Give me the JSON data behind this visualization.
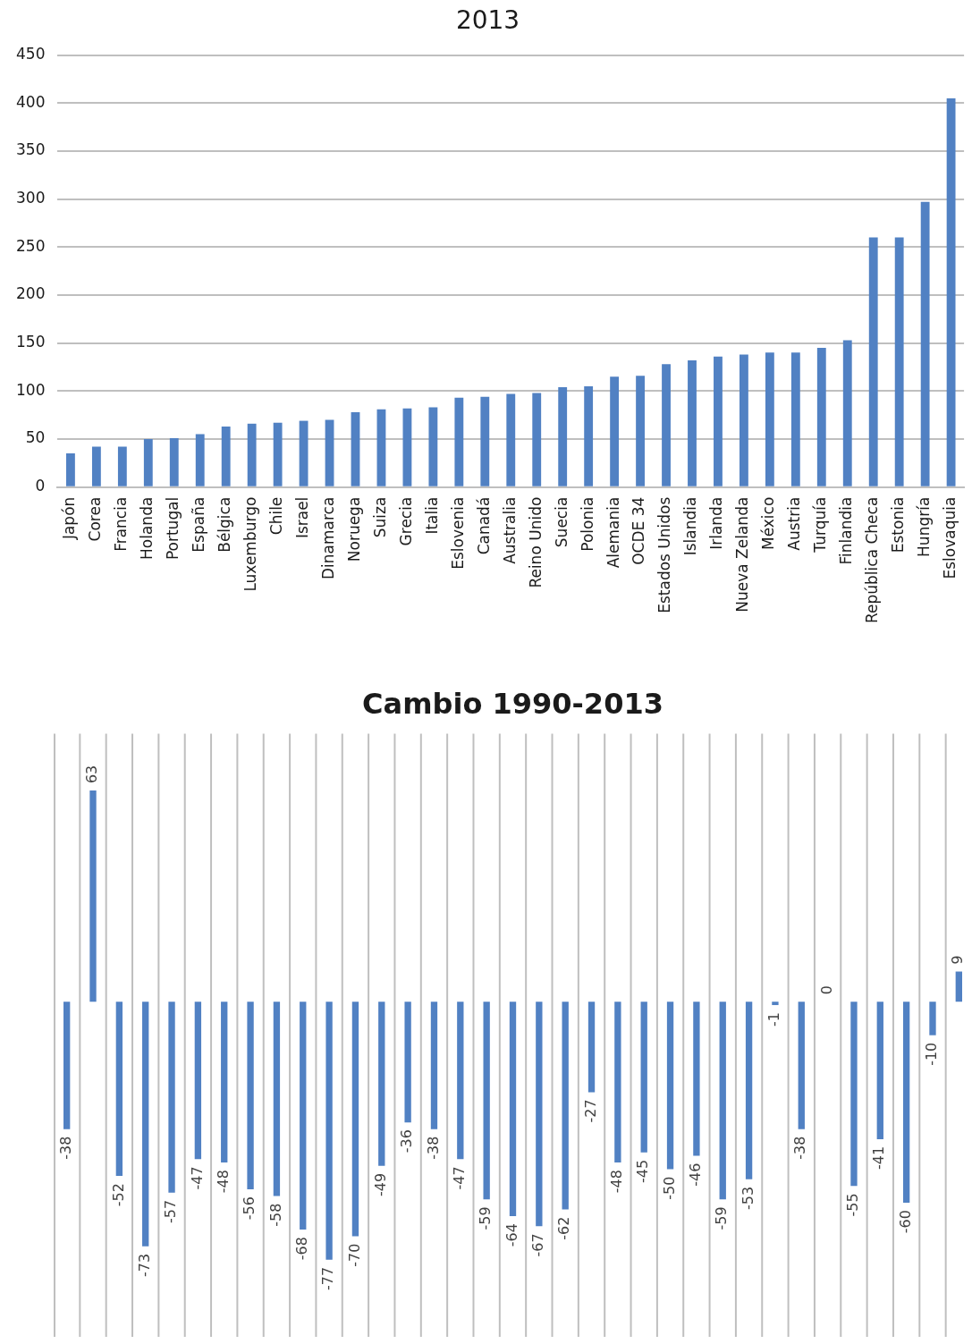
{
  "chart_data": [
    {
      "type": "bar",
      "title": "2013",
      "categories": [
        "Japón",
        "Corea",
        "Francia",
        "Holanda",
        "Portugal",
        "España",
        "Bélgica",
        "Luxemburgo",
        "Chile",
        "Israel",
        "Dinamarca",
        "Noruega",
        "Suiza",
        "Grecia",
        "Italia",
        "Eslovenia",
        "Canadá",
        "Australia",
        "Reino Unido",
        "Suecia",
        "Polonia",
        "Alemania",
        "OCDE 34",
        "Estados Unidos",
        "Islandia",
        "Irlanda",
        "Nueva Zelanda",
        "México",
        "Austria",
        "Turquía",
        "Finlandia",
        "República Checa",
        "Estonia",
        "Hungría",
        "Eslovaquia"
      ],
      "values": [
        35,
        42,
        42,
        50,
        51,
        55,
        63,
        66,
        67,
        69,
        70,
        78,
        81,
        82,
        83,
        93,
        94,
        97,
        98,
        104,
        105,
        115,
        116,
        128,
        132,
        136,
        138,
        140,
        140,
        145,
        153,
        260,
        260,
        297,
        405
      ],
      "color": "#5181c3",
      "ylim": [
        0,
        450
      ],
      "yticks": [
        0,
        50,
        100,
        150,
        200,
        250,
        300,
        350,
        400,
        450
      ],
      "grid": "y"
    },
    {
      "type": "bar",
      "title": "Cambio 1990-2013",
      "categories": [
        null,
        null,
        null,
        null,
        null,
        null,
        null,
        null,
        null,
        null,
        null,
        null,
        null,
        null,
        null,
        null,
        null,
        null,
        null,
        null,
        null,
        null,
        null,
        null,
        null,
        null,
        null,
        null,
        null,
        null,
        null,
        null,
        null,
        null,
        null
      ],
      "values": [
        -38,
        63,
        -52,
        -73,
        -57,
        -47,
        -48,
        -56,
        -58,
        -68,
        -77,
        -70,
        -49,
        -36,
        -38,
        -47,
        -59,
        -64,
        -67,
        -62,
        -27,
        -48,
        -45,
        -50,
        -46,
        -59,
        -53,
        -1,
        -38,
        0,
        -55,
        -41,
        -60,
        -10,
        9
      ],
      "color": "#5181c3",
      "grid": "x",
      "tick_labels": false,
      "data_labels": true
    }
  ]
}
